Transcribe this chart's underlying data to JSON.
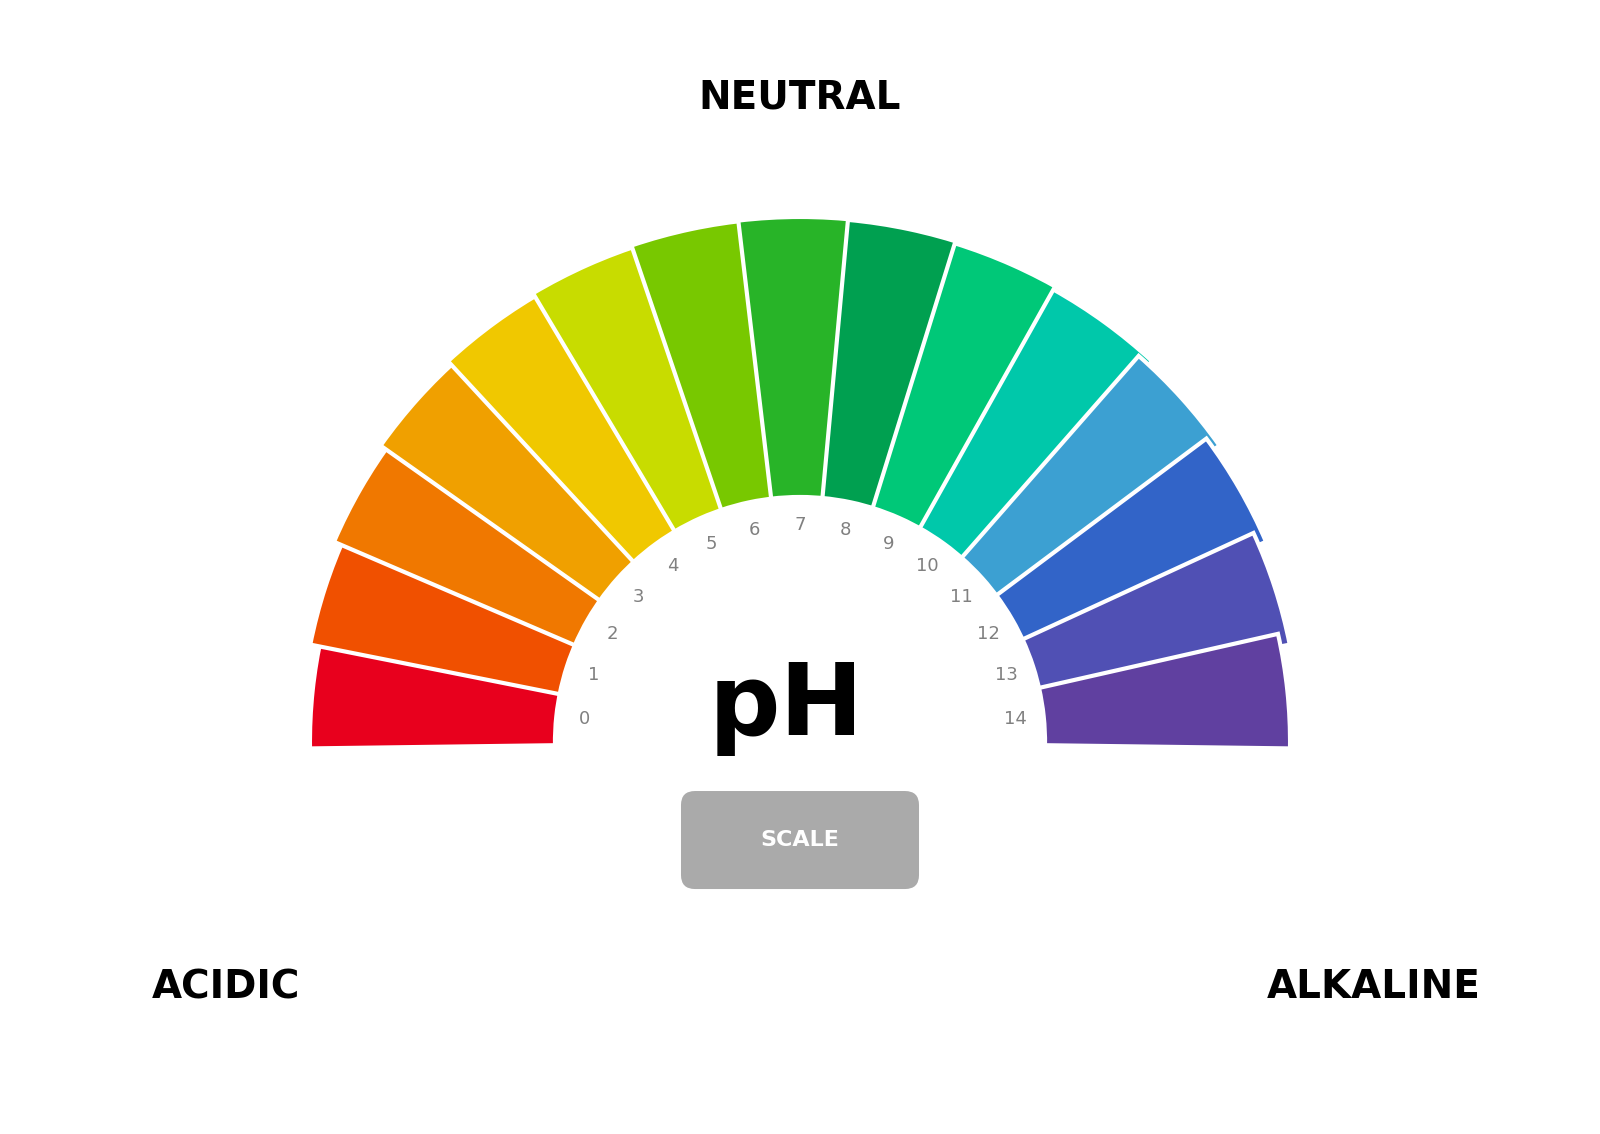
{
  "ph_colors": [
    "#E8001D",
    "#F05000",
    "#F07800",
    "#F0A000",
    "#F0C800",
    "#C8DC00",
    "#78C800",
    "#28B428",
    "#00A050",
    "#00C878",
    "#00C8AA",
    "#3CA0D2",
    "#3264C8",
    "#5050B4",
    "#6040A0",
    "#5030A0"
  ],
  "ph_labels": [
    "0",
    "1",
    "2",
    "3",
    "4",
    "5",
    "6",
    "7",
    "8",
    "9",
    "10",
    "11",
    "12",
    "13",
    "14"
  ],
  "title_neutral": "NEUTRAL",
  "title_acidic": "ACIDIC",
  "title_alkaline": "ALKALINE",
  "ph_text": "pH",
  "scale_text": "SCALE",
  "bg_color": "#ffffff",
  "text_color": "#000000",
  "label_color": "#808080",
  "scale_box_color": "#aaaaaa",
  "bottom_bar_color": "#2a9dc8"
}
